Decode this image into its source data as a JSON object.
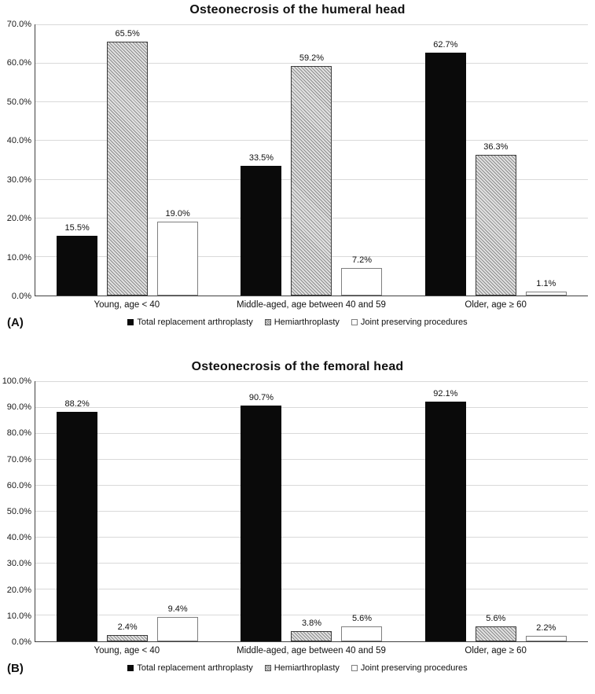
{
  "chart_data": [
    {
      "type": "bar",
      "panel": "(A)",
      "title": "Osteonecrosis of the humeral head",
      "categories": [
        "Young, age < 40",
        "Middle-aged, age between 40 and 59",
        "Older, age ≥ 60"
      ],
      "series": [
        {
          "name": "Total replacement arthroplasty",
          "swatch": "solid",
          "values": [
            15.5,
            33.5,
            62.7
          ]
        },
        {
          "name": "Hemiarthroplasty",
          "swatch": "hatched",
          "values": [
            65.5,
            59.2,
            36.3
          ]
        },
        {
          "name": "Joint preserving procedures",
          "swatch": "outline",
          "values": [
            19.0,
            7.2,
            1.1
          ]
        }
      ],
      "ylim": [
        0,
        70
      ],
      "ytick_step": 10,
      "ytick_format": "one-decimal-percent",
      "data_labels": true,
      "grid": true,
      "legend_position": "bottom"
    },
    {
      "type": "bar",
      "panel": "(B)",
      "title": "Osteonecrosis of the femoral head",
      "categories": [
        "Young, age < 40",
        "Middle-aged, age between 40 and 59",
        "Older, age ≥ 60"
      ],
      "series": [
        {
          "name": "Total replacement arthroplasty",
          "swatch": "solid",
          "values": [
            88.2,
            90.7,
            92.1
          ]
        },
        {
          "name": "Hemiarthroplasty",
          "swatch": "hatched",
          "values": [
            2.4,
            3.8,
            5.6
          ]
        },
        {
          "name": "Joint preserving procedures",
          "swatch": "outline",
          "values": [
            9.4,
            5.6,
            2.2
          ]
        }
      ],
      "ylim": [
        0,
        100
      ],
      "ytick_step": 10,
      "ytick_format": "one-decimal-percent",
      "data_labels": true,
      "grid": true,
      "legend_position": "bottom"
    }
  ],
  "colors": {
    "bar_solid": "#0a0a0a",
    "hatch_foreground": "#8c8c8c",
    "hatch_background": "#e2e2e2",
    "outline_bar_border": "#7f7f7f",
    "gridline": "#d9d9d9",
    "axis": "#404040",
    "text": "#111111"
  }
}
